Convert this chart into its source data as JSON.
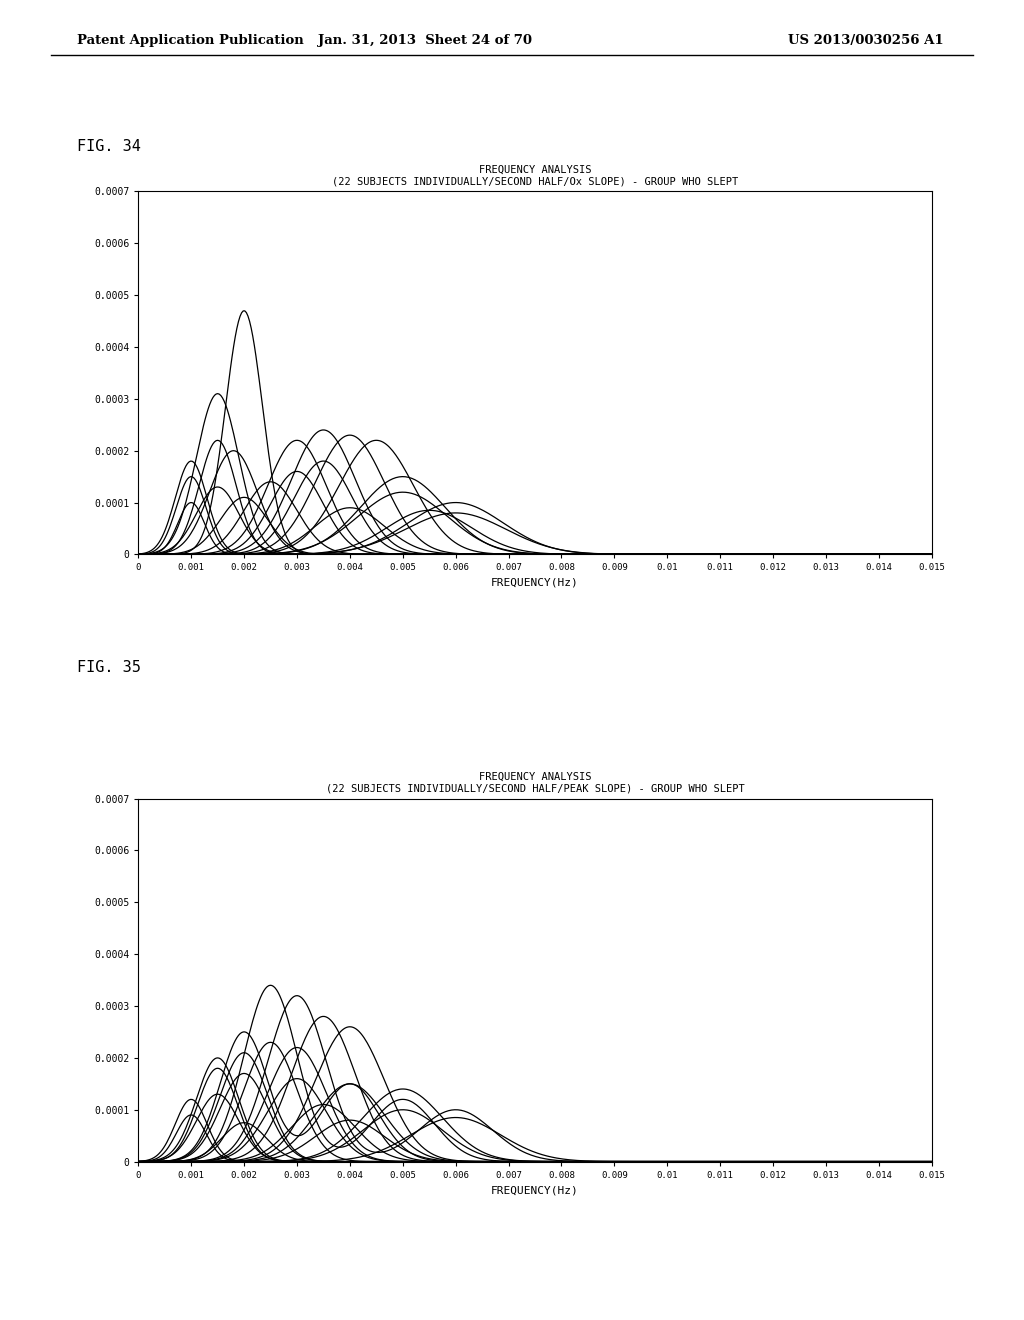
{
  "background_color": "#ffffff",
  "header_left": "Patent Application Publication",
  "header_mid": "Jan. 31, 2013  Sheet 24 of 70",
  "header_right": "US 2013/0030256 A1",
  "fig34_label": "FIG. 34",
  "fig35_label": "FIG. 35",
  "chart1_title_line1": "FREQUENCY ANALYSIS",
  "chart1_title_line2": "(22 SUBJECTS INDIVIDUALLY/SECOND HALF/Ox SLOPE)",
  "chart1_title_suffix": " - GROUP WHO SLEPT",
  "chart2_title_line1": "FREQUENCY ANALYSIS",
  "chart2_title_line2": "(22 SUBJECTS INDIVIDUALLY/SECOND HALF/PEAK SLOPE)",
  "chart2_title_suffix": " - GROUP WHO SLEPT",
  "xlabel": "FREQUENCY(Hz)",
  "ylim": [
    0,
    0.0007
  ],
  "xlim": [
    0,
    0.015
  ],
  "yticks": [
    0,
    0.0001,
    0.0002,
    0.0003,
    0.0004,
    0.0005,
    0.0006,
    0.0007
  ],
  "xticks": [
    0,
    0.001,
    0.002,
    0.003,
    0.004,
    0.005,
    0.006,
    0.007,
    0.008,
    0.009,
    0.01,
    0.011,
    0.012,
    0.013,
    0.014,
    0.015
  ],
  "line_color": "#000000",
  "fig34_curves": [
    {
      "peaks": [
        {
          "mu": 0.002,
          "sigma": 0.00035,
          "amp": 0.00047
        }
      ]
    },
    {
      "peaks": [
        {
          "mu": 0.0015,
          "sigma": 0.0004,
          "amp": 0.00031
        }
      ]
    },
    {
      "peaks": [
        {
          "mu": 0.0015,
          "sigma": 0.00035,
          "amp": 0.00022
        }
      ]
    },
    {
      "peaks": [
        {
          "mu": 0.0018,
          "sigma": 0.00045,
          "amp": 0.0002
        }
      ]
    },
    {
      "peaks": [
        {
          "mu": 0.001,
          "sigma": 0.0003,
          "amp": 0.00018
        }
      ]
    },
    {
      "peaks": [
        {
          "mu": 0.001,
          "sigma": 0.00028,
          "amp": 0.00015
        }
      ]
    },
    {
      "peaks": [
        {
          "mu": 0.003,
          "sigma": 0.00055,
          "amp": 0.00022
        }
      ]
    },
    {
      "peaks": [
        {
          "mu": 0.0035,
          "sigma": 0.0006,
          "amp": 0.00024
        }
      ]
    },
    {
      "peaks": [
        {
          "mu": 0.004,
          "sigma": 0.00065,
          "amp": 0.00023
        }
      ]
    },
    {
      "peaks": [
        {
          "mu": 0.0045,
          "sigma": 0.0007,
          "amp": 0.00022
        }
      ]
    },
    {
      "peaks": [
        {
          "mu": 0.0035,
          "sigma": 0.00055,
          "amp": 0.00018
        }
      ]
    },
    {
      "peaks": [
        {
          "mu": 0.003,
          "sigma": 0.0005,
          "amp": 0.00016
        }
      ]
    },
    {
      "peaks": [
        {
          "mu": 0.0015,
          "sigma": 0.0004,
          "amp": 0.00013
        }
      ]
    },
    {
      "peaks": [
        {
          "mu": 0.005,
          "sigma": 0.0008,
          "amp": 0.00015
        }
      ]
    },
    {
      "peaks": [
        {
          "mu": 0.005,
          "sigma": 0.00085,
          "amp": 0.00012
        }
      ]
    },
    {
      "peaks": [
        {
          "mu": 0.006,
          "sigma": 0.0009,
          "amp": 0.0001
        }
      ]
    },
    {
      "peaks": [
        {
          "mu": 0.0025,
          "sigma": 0.0005,
          "amp": 0.00014
        }
      ]
    },
    {
      "peaks": [
        {
          "mu": 0.002,
          "sigma": 0.00045,
          "amp": 0.00011
        }
      ]
    },
    {
      "peaks": [
        {
          "mu": 0.001,
          "sigma": 0.00025,
          "amp": 0.0001
        }
      ]
    },
    {
      "peaks": [
        {
          "mu": 0.0055,
          "sigma": 0.0008,
          "amp": 8.5e-05
        }
      ]
    },
    {
      "peaks": [
        {
          "mu": 0.004,
          "sigma": 0.00065,
          "amp": 9e-05
        }
      ]
    },
    {
      "peaks": [
        {
          "mu": 0.006,
          "sigma": 0.00095,
          "amp": 8e-05
        }
      ]
    }
  ],
  "fig35_curves": [
    {
      "peaks": [
        {
          "mu": 0.002,
          "sigma": 0.00045,
          "amp": 0.00025
        },
        {
          "mu": 0.004,
          "sigma": 0.00055,
          "amp": 0.00015
        }
      ]
    },
    {
      "peaks": [
        {
          "mu": 0.0025,
          "sigma": 0.0005,
          "amp": 0.00034
        },
        {
          "mu": 0.005,
          "sigma": 0.0006,
          "amp": 0.00012
        }
      ]
    },
    {
      "peaks": [
        {
          "mu": 0.003,
          "sigma": 0.00055,
          "amp": 0.00032
        },
        {
          "mu": 0.006,
          "sigma": 0.0007,
          "amp": 0.0001
        }
      ]
    },
    {
      "peaks": [
        {
          "mu": 0.0035,
          "sigma": 0.0006,
          "amp": 0.00028
        }
      ]
    },
    {
      "peaks": [
        {
          "mu": 0.004,
          "sigma": 0.00065,
          "amp": 0.00026
        }
      ]
    },
    {
      "peaks": [
        {
          "mu": 0.0025,
          "sigma": 0.0005,
          "amp": 0.00023
        }
      ]
    },
    {
      "peaks": [
        {
          "mu": 0.003,
          "sigma": 0.00055,
          "amp": 0.00022
        }
      ]
    },
    {
      "peaks": [
        {
          "mu": 0.002,
          "sigma": 0.00045,
          "amp": 0.00021
        }
      ]
    },
    {
      "peaks": [
        {
          "mu": 0.0015,
          "sigma": 0.0004,
          "amp": 0.0002
        }
      ]
    },
    {
      "peaks": [
        {
          "mu": 0.0015,
          "sigma": 0.00038,
          "amp": 0.00018
        }
      ]
    },
    {
      "peaks": [
        {
          "mu": 0.002,
          "sigma": 0.00045,
          "amp": 0.00017
        }
      ]
    },
    {
      "peaks": [
        {
          "mu": 0.003,
          "sigma": 0.00055,
          "amp": 0.00016
        }
      ]
    },
    {
      "peaks": [
        {
          "mu": 0.004,
          "sigma": 0.00065,
          "amp": 0.00015
        }
      ]
    },
    {
      "peaks": [
        {
          "mu": 0.005,
          "sigma": 0.00075,
          "amp": 0.00014
        }
      ]
    },
    {
      "peaks": [
        {
          "mu": 0.0015,
          "sigma": 0.0004,
          "amp": 0.00013
        }
      ]
    },
    {
      "peaks": [
        {
          "mu": 0.001,
          "sigma": 0.0003,
          "amp": 0.00012
        }
      ]
    },
    {
      "peaks": [
        {
          "mu": 0.0035,
          "sigma": 0.0006,
          "amp": 0.00011
        }
      ]
    },
    {
      "peaks": [
        {
          "mu": 0.005,
          "sigma": 0.00075,
          "amp": 0.0001
        }
      ]
    },
    {
      "peaks": [
        {
          "mu": 0.001,
          "sigma": 0.00028,
          "amp": 9e-05
        }
      ]
    },
    {
      "peaks": [
        {
          "mu": 0.006,
          "sigma": 0.00085,
          "amp": 8.5e-05
        }
      ]
    },
    {
      "peaks": [
        {
          "mu": 0.004,
          "sigma": 0.00065,
          "amp": 8e-05
        }
      ]
    },
    {
      "peaks": [
        {
          "mu": 0.002,
          "sigma": 0.00042,
          "amp": 7.5e-05
        }
      ]
    }
  ]
}
